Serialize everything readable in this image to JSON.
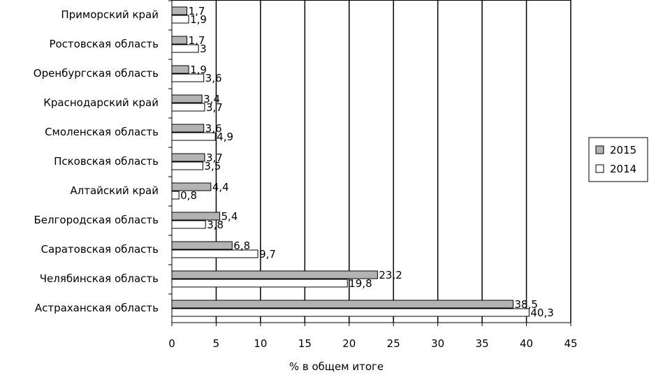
{
  "chart_data": {
    "type": "bar",
    "orientation": "horizontal",
    "categories": [
      "Приморский край",
      "Ростовская область",
      "Оренбургская область",
      "Краснодарский край",
      "Смоленская область",
      "Псковская область",
      "Алтайский край",
      "Белгородская область",
      "Саратовская область",
      "Челябинская область",
      "Астраханская область"
    ],
    "series": [
      {
        "name": "2015",
        "color": "#b3b3b3",
        "values": [
          1.7,
          1.7,
          1.9,
          3.4,
          3.6,
          3.7,
          4.4,
          5.4,
          6.8,
          23.2,
          38.5
        ],
        "labels": [
          "1,7",
          "1,7",
          "1,9",
          "3,4",
          "3,6",
          "3,7",
          "4,4",
          "5,4",
          "6,8",
          "23,2",
          "38,5"
        ]
      },
      {
        "name": "2014",
        "color": "#ffffff",
        "values": [
          1.9,
          3,
          3.6,
          3.7,
          4.9,
          3.5,
          0.8,
          3.8,
          9.7,
          19.8,
          40.3
        ],
        "labels": [
          "1,9",
          "3",
          "3,6",
          "3,7",
          "4,9",
          "3,5",
          "0,8",
          "3,8",
          "9,7",
          "19,8",
          "40,3"
        ]
      }
    ],
    "xlabel": "% в общем итоге",
    "xlim": [
      0,
      45
    ],
    "xticks": [
      0,
      5,
      10,
      15,
      20,
      25,
      30,
      35,
      40,
      45
    ],
    "grid": "vertical",
    "legend_position": "right"
  }
}
